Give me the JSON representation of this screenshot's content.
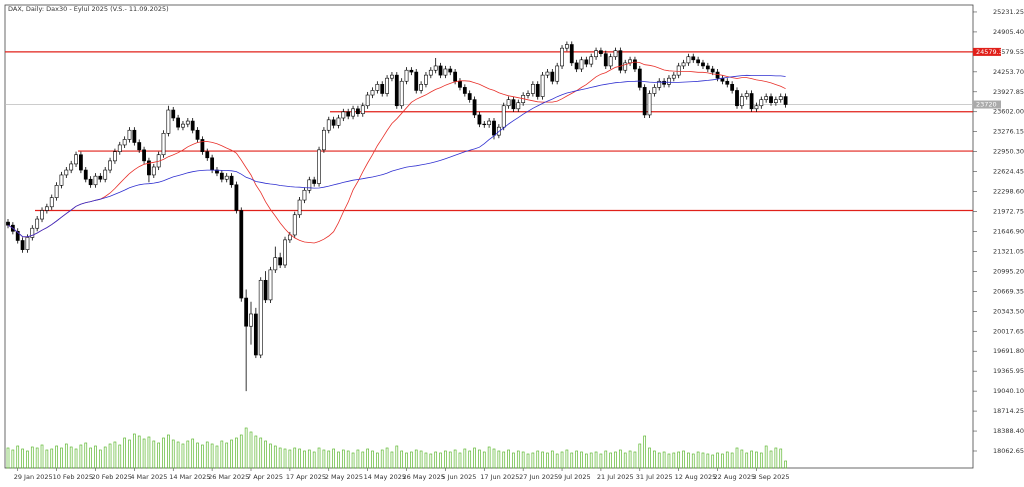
{
  "chart_data": {
    "type": "candlestick",
    "title": "DAX, Daily: Dax30 - Eylul 2025 (V.S.- 11.09.2025)",
    "categories": [
      null,
      null,
      "29 Jan 2025",
      null,
      null,
      null,
      null,
      null,
      null,
      null,
      "10 Feb 2025",
      null,
      null,
      null,
      null,
      null,
      null,
      null,
      "20 Feb 2025",
      null,
      null,
      null,
      null,
      null,
      null,
      null,
      "4 Mar 2025",
      null,
      null,
      null,
      null,
      null,
      null,
      null,
      "14 Mar 2025",
      null,
      null,
      null,
      null,
      null,
      null,
      null,
      "26 Mar 2025",
      null,
      null,
      null,
      null,
      null,
      null,
      null,
      "7 Apr 2025",
      null,
      null,
      null,
      null,
      null,
      null,
      null,
      "17 Apr 2025",
      null,
      null,
      null,
      null,
      null,
      null,
      null,
      "2 May 2025",
      null,
      null,
      null,
      null,
      null,
      null,
      null,
      "14 May 2025",
      null,
      null,
      null,
      null,
      null,
      null,
      null,
      "26 May 2025",
      null,
      null,
      null,
      null,
      null,
      null,
      null,
      "5 Jun 2025",
      null,
      null,
      null,
      null,
      null,
      null,
      null,
      "17 Jun 2025",
      null,
      null,
      null,
      null,
      null,
      null,
      null,
      "27 Jun 2025",
      null,
      null,
      null,
      null,
      null,
      null,
      null,
      "9 Jul 2025",
      null,
      null,
      null,
      null,
      null,
      null,
      null,
      "21 Jul 2025",
      null,
      null,
      null,
      null,
      null,
      null,
      null,
      "31 Jul 2025",
      null,
      null,
      null,
      null,
      null,
      null,
      null,
      "12 Aug 2025",
      null,
      null,
      null,
      null,
      null,
      null,
      null,
      "22 Aug 2025",
      null,
      null,
      null,
      null,
      null,
      null,
      null,
      "3 Sep 2025",
      null,
      null,
      null,
      null,
      null,
      null
    ],
    "ohlc": [
      [
        21800,
        21850,
        21700,
        21750
      ],
      [
        21750,
        21800,
        21600,
        21650
      ],
      [
        21650,
        21700,
        21450,
        21500
      ],
      [
        21500,
        21550,
        21300,
        21350
      ],
      [
        21350,
        21600,
        21300,
        21550
      ],
      [
        21550,
        21750,
        21500,
        21700
      ],
      [
        21700,
        21900,
        21650,
        21850
      ],
      [
        21850,
        22040,
        21800,
        21990
      ],
      [
        21990,
        22100,
        21940,
        22050
      ],
      [
        22050,
        22250,
        22000,
        22200
      ],
      [
        22200,
        22450,
        22150,
        22400
      ],
      [
        22400,
        22620,
        22350,
        22570
      ],
      [
        22570,
        22700,
        22520,
        22650
      ],
      [
        22650,
        22800,
        22600,
        22750
      ],
      [
        22750,
        22950,
        22700,
        22900
      ],
      [
        22900,
        22950,
        22600,
        22650
      ],
      [
        22650,
        22700,
        22450,
        22500
      ],
      [
        22500,
        22550,
        22360,
        22410
      ],
      [
        22410,
        22600,
        22360,
        22550
      ],
      [
        22550,
        22600,
        22450,
        22500
      ],
      [
        22500,
        22700,
        22450,
        22650
      ],
      [
        22650,
        22850,
        22600,
        22800
      ],
      [
        22800,
        23000,
        22750,
        22950
      ],
      [
        22950,
        23110,
        22900,
        23060
      ],
      [
        23060,
        23200,
        23010,
        23150
      ],
      [
        23150,
        23350,
        23100,
        23300
      ],
      [
        23300,
        23350,
        23050,
        23100
      ],
      [
        23100,
        23150,
        22930,
        22980
      ],
      [
        22980,
        23030,
        22750,
        22800
      ],
      [
        22800,
        22850,
        22450,
        22570
      ],
      [
        22570,
        22750,
        22520,
        22700
      ],
      [
        22700,
        22950,
        22650,
        22900
      ],
      [
        22900,
        23300,
        22850,
        23250
      ],
      [
        23250,
        23700,
        23200,
        23630
      ],
      [
        23630,
        23680,
        23450,
        23500
      ],
      [
        23500,
        23550,
        23300,
        23350
      ],
      [
        23350,
        23450,
        23300,
        23400
      ],
      [
        23400,
        23500,
        23350,
        23450
      ],
      [
        23450,
        23500,
        23250,
        23300
      ],
      [
        23300,
        23350,
        23100,
        23150
      ],
      [
        23150,
        23200,
        22900,
        22950
      ],
      [
        22950,
        23000,
        22800,
        22850
      ],
      [
        22850,
        22900,
        22600,
        22650
      ],
      [
        22650,
        22700,
        22550,
        22600
      ],
      [
        22600,
        22650,
        22450,
        22500
      ],
      [
        22500,
        22600,
        22450,
        22550
      ],
      [
        22550,
        22600,
        22360,
        22410
      ],
      [
        22410,
        22460,
        21940,
        21990
      ],
      [
        21990,
        22040,
        20500,
        20560
      ],
      [
        20560,
        20700,
        19040,
        20100
      ],
      [
        20100,
        20500,
        19800,
        20300
      ],
      [
        20300,
        20400,
        19580,
        19630
      ],
      [
        19630,
        20900,
        19580,
        20850
      ],
      [
        20850,
        21000,
        20480,
        20530
      ],
      [
        20530,
        21070,
        20480,
        21020
      ],
      [
        21020,
        21400,
        20970,
        21220
      ],
      [
        21220,
        21300,
        21050,
        21100
      ],
      [
        21100,
        21560,
        21050,
        21510
      ],
      [
        21510,
        21640,
        21460,
        21590
      ],
      [
        21590,
        21970,
        21540,
        21920
      ],
      [
        21920,
        22210,
        21870,
        22160
      ],
      [
        22160,
        22370,
        22110,
        22320
      ],
      [
        22320,
        22540,
        22270,
        22490
      ],
      [
        22490,
        22540,
        22380,
        22430
      ],
      [
        22430,
        23030,
        22380,
        22980
      ],
      [
        22980,
        23350,
        22930,
        23300
      ],
      [
        23300,
        23520,
        23250,
        23470
      ],
      [
        23470,
        23520,
        23330,
        23380
      ],
      [
        23380,
        23550,
        23330,
        23500
      ],
      [
        23500,
        23650,
        23450,
        23600
      ],
      [
        23600,
        23650,
        23480,
        23530
      ],
      [
        23530,
        23700,
        23480,
        23650
      ],
      [
        23650,
        23700,
        23520,
        23570
      ],
      [
        23570,
        23750,
        23520,
        23700
      ],
      [
        23700,
        23925,
        23650,
        23875
      ],
      [
        23875,
        24000,
        23825,
        23950
      ],
      [
        23950,
        24100,
        23900,
        24050
      ],
      [
        24050,
        24100,
        23850,
        23900
      ],
      [
        23900,
        24200,
        23850,
        24150
      ],
      [
        24150,
        24250,
        24100,
        24200
      ],
      [
        24200,
        24250,
        23650,
        23700
      ],
      [
        23700,
        24150,
        23650,
        24100
      ],
      [
        24100,
        24330,
        24050,
        24280
      ],
      [
        24280,
        24330,
        24200,
        24250
      ],
      [
        24250,
        24300,
        23900,
        23950
      ],
      [
        23950,
        24100,
        23900,
        24050
      ],
      [
        24050,
        24250,
        24000,
        24200
      ],
      [
        24200,
        24330,
        24150,
        24280
      ],
      [
        24280,
        24480,
        24230,
        24350
      ],
      [
        24350,
        24400,
        24150,
        24200
      ],
      [
        24200,
        24350,
        24150,
        24300
      ],
      [
        24300,
        24350,
        24200,
        24250
      ],
      [
        24250,
        24300,
        24050,
        24100
      ],
      [
        24100,
        24150,
        23950,
        24000
      ],
      [
        24000,
        24050,
        23850,
        23900
      ],
      [
        23900,
        23950,
        23750,
        23800
      ],
      [
        23800,
        23850,
        23500,
        23550
      ],
      [
        23550,
        23600,
        23350,
        23400
      ],
      [
        23400,
        23450,
        23340,
        23390
      ],
      [
        23390,
        23500,
        23340,
        23450
      ],
      [
        23450,
        23500,
        23150,
        23220
      ],
      [
        23220,
        23400,
        23170,
        23350
      ],
      [
        23350,
        23750,
        23300,
        23700
      ],
      [
        23700,
        23850,
        23650,
        23800
      ],
      [
        23800,
        23850,
        23600,
        23650
      ],
      [
        23650,
        23800,
        23600,
        23750
      ],
      [
        23750,
        23920,
        23700,
        23870
      ],
      [
        23870,
        23950,
        23820,
        23900
      ],
      [
        23900,
        24100,
        23850,
        24050
      ],
      [
        24050,
        24100,
        23800,
        23850
      ],
      [
        23850,
        24250,
        23800,
        24200
      ],
      [
        24200,
        24300,
        24150,
        24250
      ],
      [
        24250,
        24300,
        24050,
        24100
      ],
      [
        24100,
        24400,
        24050,
        24350
      ],
      [
        24350,
        24690,
        24300,
        24640
      ],
      [
        24640,
        24750,
        24590,
        24700
      ],
      [
        24700,
        24750,
        24350,
        24400
      ],
      [
        24400,
        24450,
        24250,
        24300
      ],
      [
        24300,
        24500,
        24250,
        24450
      ],
      [
        24450,
        24500,
        24330,
        24380
      ],
      [
        24380,
        24550,
        24330,
        24500
      ],
      [
        24500,
        24650,
        24450,
        24600
      ],
      [
        24600,
        24650,
        24500,
        24550
      ],
      [
        24550,
        24600,
        24300,
        24350
      ],
      [
        24350,
        24550,
        24300,
        24500
      ],
      [
        24500,
        24650,
        24450,
        24600
      ],
      [
        24600,
        24650,
        24230,
        24280
      ],
      [
        24280,
        24450,
        24230,
        24400
      ],
      [
        24400,
        24500,
        24350,
        24450
      ],
      [
        24450,
        24500,
        24250,
        24300
      ],
      [
        24300,
        24350,
        23950,
        24000
      ],
      [
        24000,
        24050,
        23500,
        23550
      ],
      [
        23550,
        23950,
        23500,
        23900
      ],
      [
        23900,
        24050,
        23850,
        24000
      ],
      [
        24000,
        24150,
        23950,
        24100
      ],
      [
        24100,
        24150,
        24000,
        24050
      ],
      [
        24050,
        24200,
        24000,
        24150
      ],
      [
        24150,
        24250,
        24100,
        24200
      ],
      [
        24200,
        24400,
        24150,
        24350
      ],
      [
        24350,
        24450,
        24300,
        24400
      ],
      [
        24400,
        24550,
        24350,
        24500
      ],
      [
        24500,
        24550,
        24400,
        24450
      ],
      [
        24450,
        24500,
        24350,
        24400
      ],
      [
        24400,
        24450,
        24300,
        24350
      ],
      [
        24350,
        24400,
        24250,
        24300
      ],
      [
        24300,
        24350,
        24200,
        24250
      ],
      [
        24250,
        24300,
        24100,
        24150
      ],
      [
        24150,
        24200,
        24050,
        24100
      ],
      [
        24100,
        24150,
        24000,
        24050
      ],
      [
        24050,
        24100,
        23900,
        23950
      ],
      [
        23950,
        24000,
        23650,
        23700
      ],
      [
        23700,
        23900,
        23650,
        23850
      ],
      [
        23850,
        23950,
        23800,
        23900
      ],
      [
        23900,
        23950,
        23600,
        23650
      ],
      [
        23650,
        23750,
        23600,
        23700
      ],
      [
        23700,
        23850,
        23650,
        23800
      ],
      [
        23800,
        23900,
        23750,
        23850
      ],
      [
        23850,
        23900,
        23700,
        23750
      ],
      [
        23750,
        23850,
        23700,
        23800
      ],
      [
        23800,
        23900,
        23750,
        23850
      ],
      [
        23850,
        23900,
        23670,
        23720
      ]
    ],
    "volumes": [
      20,
      18,
      22,
      19,
      17,
      21,
      20,
      23,
      18,
      19,
      22,
      20,
      24,
      21,
      19,
      23,
      25,
      20,
      22,
      18,
      21,
      24,
      26,
      23,
      30,
      28,
      34,
      32,
      29,
      31,
      27,
      25,
      30,
      33,
      28,
      26,
      24,
      27,
      29,
      25,
      23,
      26,
      24,
      22,
      27,
      25,
      28,
      30,
      33,
      40,
      36,
      32,
      30,
      27,
      24,
      22,
      20,
      19,
      18,
      20,
      19,
      17,
      18,
      16,
      20,
      18,
      17,
      19,
      16,
      18,
      17,
      15,
      18,
      16,
      19,
      17,
      15,
      18,
      20,
      16,
      22,
      17,
      15,
      16,
      18,
      17,
      15,
      14,
      16,
      15,
      17,
      16,
      18,
      15,
      19,
      17,
      20,
      18,
      16,
      21,
      19,
      17,
      16,
      18,
      15,
      17,
      16,
      14,
      15,
      17,
      16,
      15,
      17,
      14,
      16,
      18,
      15,
      17,
      16,
      14,
      15,
      16,
      14,
      17,
      15,
      16,
      18,
      15,
      17,
      16,
      24,
      32,
      20,
      17,
      15,
      16,
      14,
      15,
      16,
      17,
      15,
      14,
      16,
      15,
      14,
      13,
      15,
      14,
      16,
      15,
      20,
      18,
      15,
      17,
      16,
      15,
      22,
      17,
      20,
      19,
      7
    ],
    "volume_color": "#5fb832",
    "moving_averages": [
      {
        "period": 20,
        "color": "#e8302a"
      },
      {
        "period": 50,
        "color": "#2f2fd0"
      }
    ],
    "levels": [
      24579.3,
      23602,
      22960,
      21990
    ],
    "level_color": "#e0201a",
    "ylim": [
      17785,
      25345
    ],
    "yticks": [
      {
        "value": 25231.25,
        "label": "25231.25"
      },
      {
        "value": 24905.4,
        "label": "24905.40"
      },
      {
        "value": 24579.55,
        "label": "24579.55"
      },
      {
        "value": 24253.7,
        "label": "24253.70"
      },
      {
        "value": 23927.85,
        "label": "23927.85"
      },
      {
        "value": 23602,
        "label": "23602.00"
      },
      {
        "value": 23276.15,
        "label": "23276.15"
      },
      {
        "value": 22950.3,
        "label": "22950.30"
      },
      {
        "value": 22624.45,
        "label": "22624.45"
      },
      {
        "value": 22298.6,
        "label": "22298.60"
      },
      {
        "value": 21972.75,
        "label": "21972.75"
      },
      {
        "value": 21646.9,
        "label": "21646.90"
      },
      {
        "value": 21321.05,
        "label": "21321.05"
      },
      {
        "value": 20995.2,
        "label": "20995.20"
      },
      {
        "value": 20669.35,
        "label": "20669.35"
      },
      {
        "value": 20343.5,
        "label": "20343.50"
      },
      {
        "value": 20017.65,
        "label": "20017.65"
      },
      {
        "value": 19691.8,
        "label": "19691.80"
      },
      {
        "value": 19365.95,
        "label": "19365.95"
      },
      {
        "value": 19040.1,
        "label": "19040.10"
      },
      {
        "value": 18714.25,
        "label": "18714.25"
      },
      {
        "value": 18388.4,
        "label": "18388.40"
      },
      {
        "value": 18062.65,
        "label": "18062.65"
      }
    ]
  }
}
